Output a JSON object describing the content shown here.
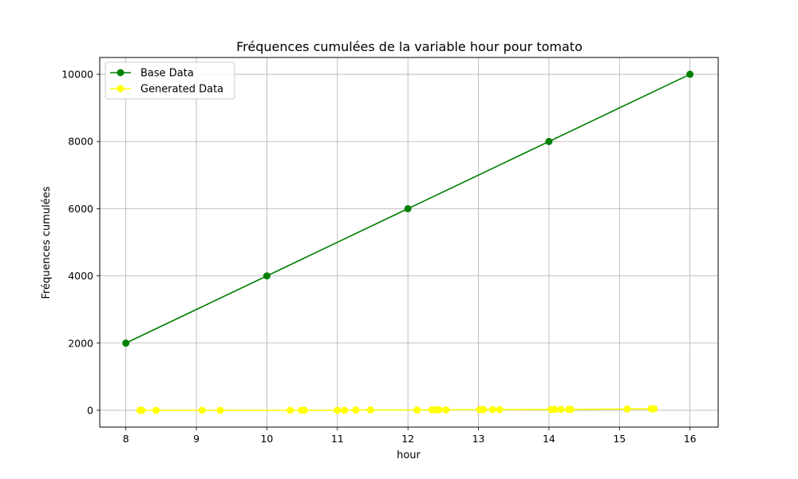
{
  "chart_data": {
    "type": "line",
    "title": "Fréquences cumulées de la variable hour pour tomato",
    "xlabel": "hour",
    "ylabel": "Fréquences cumulées",
    "xlim": [
      7.63,
      16.4
    ],
    "ylim": [
      -500,
      10500
    ],
    "xticks": [
      8,
      9,
      10,
      11,
      12,
      13,
      14,
      15,
      16
    ],
    "yticks": [
      0,
      2000,
      4000,
      6000,
      8000,
      10000
    ],
    "grid": true,
    "legend_position": "top-left",
    "series": [
      {
        "name": "Base Data",
        "color": "#008000",
        "x": [
          8,
          10,
          12,
          14,
          16
        ],
        "y": [
          2000,
          4000,
          6000,
          8000,
          10000
        ]
      },
      {
        "name": "Generated Data",
        "color": "#ffff00",
        "x": [
          8.2,
          8.23,
          8.43,
          9.08,
          9.34,
          10.33,
          10.49,
          10.53,
          11.0,
          11.1,
          11.26,
          11.47,
          12.13,
          12.34,
          12.4,
          12.44,
          12.54,
          13.02,
          13.07,
          13.2,
          13.3,
          14.03,
          14.08,
          14.17,
          14.28,
          14.31,
          15.11,
          15.45,
          15.49
        ],
        "y": [
          0,
          0,
          0,
          0,
          0,
          0,
          0,
          0,
          0,
          0,
          10,
          10,
          10,
          15,
          15,
          15,
          15,
          20,
          20,
          20,
          20,
          25,
          25,
          25,
          25,
          25,
          40,
          45,
          45
        ]
      }
    ]
  }
}
